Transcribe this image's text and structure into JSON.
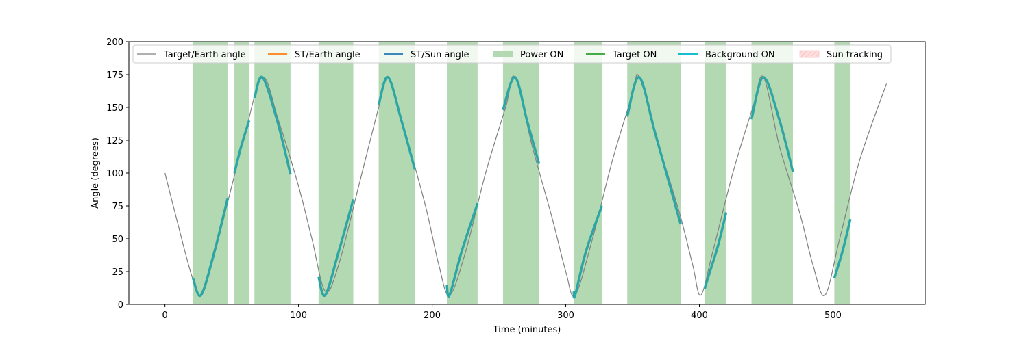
{
  "chart_data": {
    "type": "line",
    "title": "",
    "xlabel": "Time (minutes)",
    "ylabel": "Angle (degrees)",
    "xlim": [
      -27,
      569
    ],
    "ylim": [
      0,
      200
    ],
    "x_ticks": [
      0,
      100,
      200,
      300,
      400,
      500
    ],
    "y_ticks": [
      0,
      25,
      50,
      75,
      100,
      125,
      150,
      175,
      200
    ],
    "grid": false,
    "legend_placement": "top",
    "colors": {
      "target_earth": "#808080",
      "st_earth": "#ff7f0e",
      "st_sun": "#1f77b4",
      "power_on": "#b3d9b3",
      "target_on": "#2ca02c",
      "background_on": "#17becf",
      "background_on_drawn": "#2ca6a4",
      "sun_tracking": "#ffdddd"
    },
    "legend": [
      {
        "key": "target_earth",
        "label": "Target/Earth angle",
        "style": "thin-line"
      },
      {
        "key": "st_earth",
        "label": "ST/Earth angle",
        "style": "line"
      },
      {
        "key": "st_sun",
        "label": "ST/Sun angle",
        "style": "line"
      },
      {
        "key": "power_on",
        "label": "Power ON",
        "style": "patch"
      },
      {
        "key": "target_on",
        "label": "Target ON",
        "style": "line"
      },
      {
        "key": "background_on",
        "label": "Background ON",
        "style": "thick-line"
      },
      {
        "key": "sun_tracking",
        "label": "Sun tracking",
        "style": "hatched-patch"
      }
    ],
    "series": [
      {
        "name": "Target/Earth angle",
        "x": [
          0,
          10,
          20,
          27,
          35,
          50,
          60,
          73,
          85,
          100,
          110,
          120,
          130,
          145,
          160,
          167,
          180,
          195,
          205,
          213,
          225,
          240,
          255,
          262,
          275,
          290,
          300,
          307,
          320,
          335,
          350,
          355,
          370,
          385,
          395,
          401,
          410,
          425,
          440,
          448,
          460,
          475,
          485,
          494,
          505,
          520,
          540
        ],
        "y": [
          100,
          60,
          22,
          7,
          30,
          90,
          130,
          173,
          140,
          90,
          50,
          10,
          30,
          90,
          150,
          173,
          130,
          75,
          30,
          7,
          40,
          100,
          150,
          173,
          120,
          65,
          25,
          7,
          50,
          110,
          160,
          173,
          120,
          70,
          30,
          7,
          40,
          100,
          150,
          173,
          120,
          70,
          30,
          7,
          50,
          110,
          168
        ]
      }
    ],
    "power_on_intervals": [
      [
        21,
        47
      ],
      [
        52,
        63
      ],
      [
        67,
        94
      ],
      [
        115,
        141
      ],
      [
        160,
        187
      ],
      [
        211,
        234
      ],
      [
        253,
        280
      ],
      [
        306,
        327
      ],
      [
        346,
        386
      ],
      [
        404,
        420
      ],
      [
        439,
        470
      ],
      [
        501,
        513
      ]
    ],
    "background_on_segments": [
      {
        "x": [
          21,
          27,
          37,
          47
        ],
        "y": [
          20,
          7,
          40,
          81
        ]
      },
      {
        "x": [
          52,
          57,
          63
        ],
        "y": [
          100,
          120,
          140
        ]
      },
      {
        "x": [
          67,
          73,
          84,
          94
        ],
        "y": [
          157,
          173,
          140,
          99
        ]
      },
      {
        "x": [
          115,
          120,
          130,
          141
        ],
        "y": [
          21,
          7,
          40,
          80
        ]
      },
      {
        "x": [
          160,
          167,
          177,
          187
        ],
        "y": [
          152,
          173,
          140,
          103
        ]
      },
      {
        "x": [
          211,
          213,
          222,
          234
        ],
        "y": [
          15,
          7,
          40,
          77
        ]
      },
      {
        "x": [
          253,
          262,
          271,
          280
        ],
        "y": [
          148,
          173,
          140,
          107
        ]
      },
      {
        "x": [
          306,
          307,
          315,
          327
        ],
        "y": [
          10,
          7,
          40,
          75
        ]
      },
      {
        "x": [
          346,
          355,
          367,
          386
        ],
        "y": [
          143,
          173,
          130,
          61
        ]
      },
      {
        "x": [
          404,
          407,
          414,
          420
        ],
        "y": [
          12,
          22,
          45,
          70
        ]
      },
      {
        "x": [
          439,
          448,
          460,
          470
        ],
        "y": [
          141,
          173,
          140,
          101
        ]
      },
      {
        "x": [
          501,
          507,
          513
        ],
        "y": [
          20,
          40,
          65
        ]
      }
    ]
  }
}
